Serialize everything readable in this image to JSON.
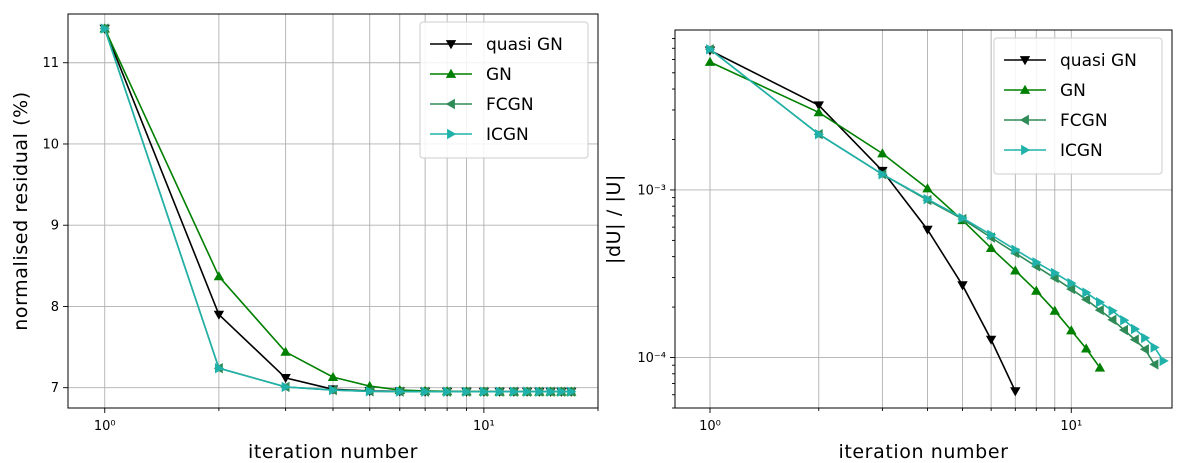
{
  "chart_data": [
    {
      "type": "line",
      "xscale": "log",
      "yscale": "linear",
      "xlabel": "iteration number",
      "ylabel": "normalised residual (%)",
      "xlim": [
        0.8,
        20
      ],
      "ylim": [
        6.75,
        11.6
      ],
      "yticks": [
        7,
        8,
        9,
        10,
        11
      ],
      "ytick_labels": [
        "7",
        "8",
        "9",
        "10",
        "11"
      ],
      "xticks": [
        1,
        10
      ],
      "xtick_labels": [
        "10⁰",
        "10¹"
      ],
      "grid": true,
      "legend_position": "top-right",
      "series": [
        {
          "name": "quasi GN",
          "color": "#000000",
          "marker": "triangle-down",
          "x": [
            1,
            2,
            3,
            4,
            5,
            6,
            7,
            8,
            9,
            10,
            11,
            12,
            13,
            14,
            15,
            16,
            17
          ],
          "y": [
            11.42,
            7.9,
            7.12,
            6.98,
            6.96,
            6.955,
            6.953,
            6.952,
            6.951,
            6.951,
            6.951,
            6.951,
            6.951,
            6.951,
            6.951,
            6.951,
            6.951
          ]
        },
        {
          "name": "GN",
          "color": "#008000",
          "marker": "triangle-up",
          "x": [
            1,
            2,
            3,
            4,
            5,
            6,
            7,
            8,
            9,
            10,
            11,
            12,
            13,
            14,
            15,
            16,
            17
          ],
          "y": [
            11.42,
            8.37,
            7.44,
            7.13,
            7.02,
            6.97,
            6.96,
            6.955,
            6.953,
            6.952,
            6.951,
            6.951,
            6.951,
            6.951,
            6.951,
            6.951,
            6.951
          ]
        },
        {
          "name": "FCGN",
          "color": "#2e8b57",
          "marker": "triangle-left",
          "x": [
            1,
            2,
            3,
            4,
            5,
            6,
            7,
            8,
            9,
            10,
            11,
            12,
            13,
            14,
            15,
            16,
            17
          ],
          "y": [
            11.42,
            7.24,
            7.01,
            6.97,
            6.955,
            6.952,
            6.951,
            6.951,
            6.951,
            6.951,
            6.951,
            6.951,
            6.951,
            6.951,
            6.951,
            6.951,
            6.951
          ]
        },
        {
          "name": "ICGN",
          "color": "#20b2aa",
          "marker": "triangle-right",
          "x": [
            1,
            2,
            3,
            4,
            5,
            6,
            7,
            8,
            9,
            10,
            11,
            12,
            13,
            14,
            15,
            16,
            17
          ],
          "y": [
            11.42,
            7.24,
            7.01,
            6.97,
            6.955,
            6.952,
            6.951,
            6.951,
            6.951,
            6.951,
            6.951,
            6.951,
            6.951,
            6.951,
            6.951,
            6.951,
            6.951
          ]
        }
      ]
    },
    {
      "type": "line",
      "xscale": "log",
      "yscale": "log",
      "xlabel": "iteration number",
      "ylabel": "|dU| / |U|",
      "xlim": [
        0.8,
        19
      ],
      "ylim": [
        5e-05,
        0.009
      ],
      "yticks": [
        0.0001,
        0.001
      ],
      "ytick_labels": [
        "10⁻⁴",
        "10⁻³"
      ],
      "xticks": [
        1,
        10
      ],
      "xtick_labels": [
        "10⁰",
        "10¹"
      ],
      "grid": true,
      "legend_position": "top-right",
      "series": [
        {
          "name": "quasi GN",
          "color": "#000000",
          "marker": "triangle-down",
          "x": [
            1,
            2,
            3,
            4,
            5,
            6,
            7
          ],
          "y": [
            0.0068,
            0.0032,
            0.0013,
            0.00058,
            0.00027,
            0.000128,
            6.3e-05
          ]
        },
        {
          "name": "GN",
          "color": "#008000",
          "marker": "triangle-up",
          "x": [
            1,
            2,
            3,
            4,
            5,
            6,
            7,
            8,
            9,
            10,
            11,
            12
          ],
          "y": [
            0.0058,
            0.0029,
            0.00165,
            0.00102,
            0.00066,
            0.00045,
            0.00033,
            0.00025,
            0.00019,
            0.000145,
            0.000113,
            8.7e-05
          ]
        },
        {
          "name": "FCGN",
          "color": "#2e8b57",
          "marker": "triangle-left",
          "x": [
            1,
            2,
            3,
            4,
            5,
            6,
            7,
            8,
            9,
            10,
            11,
            12,
            13,
            14,
            15,
            16,
            17
          ],
          "y": [
            0.0069,
            0.00215,
            0.00124,
            0.00087,
            0.00067,
            0.00052,
            0.00042,
            0.00035,
            0.000298,
            0.000256,
            0.000222,
            0.000192,
            0.000168,
            0.000146,
            0.000128,
            0.000112,
            9.1e-05
          ]
        },
        {
          "name": "ICGN",
          "color": "#20b2aa",
          "marker": "triangle-right",
          "x": [
            1,
            2,
            3,
            4,
            5,
            6,
            7,
            8,
            9,
            10,
            11,
            12,
            13,
            14,
            15,
            16,
            17,
            18
          ],
          "y": [
            0.0069,
            0.00215,
            0.00124,
            0.00088,
            0.00068,
            0.00054,
            0.00044,
            0.00037,
            0.00032,
            0.000278,
            0.000244,
            0.000214,
            0.00019,
            0.000167,
            0.000148,
            0.000131,
            0.000115,
            9.55e-05
          ]
        }
      ]
    }
  ]
}
